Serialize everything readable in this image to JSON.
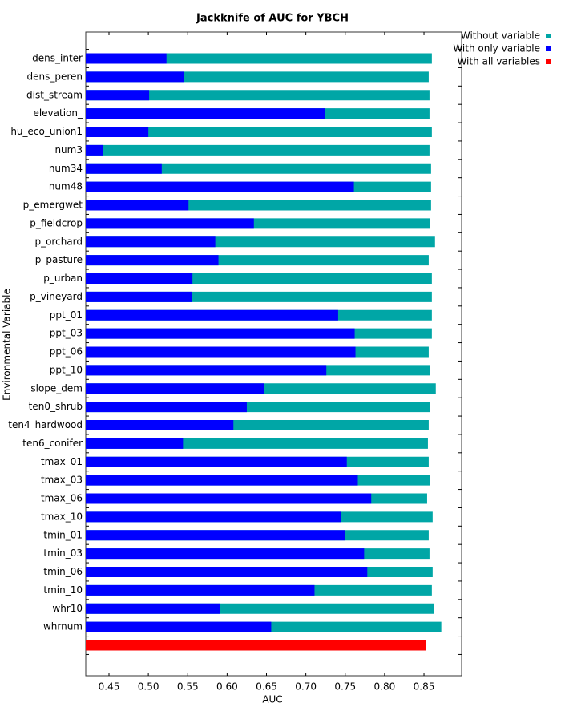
{
  "chart_data": {
    "type": "bar",
    "orientation": "horizontal",
    "title": "Jackknife of AUC for YBCH",
    "x_label": "AUC",
    "y_label": "Environmental Variable",
    "categories": [
      "dens_inter",
      "dens_peren",
      "dist_stream",
      "elevation_",
      "hu_eco_union1",
      "num3",
      "num34",
      "num48",
      "p_emergwet",
      "p_fieldcrop",
      "p_orchard",
      "p_pasture",
      "p_urban",
      "p_vineyard",
      "ppt_01",
      "ppt_03",
      "ppt_06",
      "ppt_10",
      "slope_dem",
      "ten0_shrub",
      "ten4_hardwood",
      "ten6_conifer",
      "tmax_01",
      "tmax_03",
      "tmax_06",
      "tmax_10",
      "tmin_01",
      "tmin_03",
      "tmin_06",
      "tmin_10",
      "whr10",
      "whrnum",
      null
    ],
    "series": [
      {
        "name": "Without variable",
        "color": "#00a6a6",
        "values": [
          0.86,
          0.856,
          0.857,
          0.857,
          0.86,
          0.857,
          0.859,
          0.859,
          0.859,
          0.858,
          0.864,
          0.856,
          0.86,
          0.86,
          0.86,
          0.86,
          0.856,
          0.858,
          0.865,
          0.858,
          0.856,
          0.855,
          0.856,
          0.858,
          0.854,
          0.861,
          0.856,
          0.857,
          0.861,
          0.86,
          0.863,
          0.872,
          null
        ]
      },
      {
        "name": "With only variable",
        "color": "#0000ff",
        "values": [
          0.523,
          0.545,
          0.501,
          0.724,
          0.5,
          0.442,
          0.517,
          0.761,
          0.551,
          0.634,
          0.585,
          0.589,
          0.556,
          0.555,
          0.741,
          0.762,
          0.763,
          0.726,
          0.647,
          0.625,
          0.608,
          0.544,
          0.752,
          0.766,
          0.783,
          0.745,
          0.75,
          0.774,
          0.778,
          0.711,
          0.591,
          0.656,
          null
        ]
      },
      {
        "name": "With all variables",
        "color": "#ff0000",
        "values": [
          null,
          null,
          null,
          null,
          null,
          null,
          null,
          null,
          null,
          null,
          null,
          null,
          null,
          null,
          null,
          null,
          null,
          null,
          null,
          null,
          null,
          null,
          null,
          null,
          null,
          null,
          null,
          null,
          null,
          null,
          null,
          null,
          0.852
        ]
      }
    ],
    "xlim": [
      0.4205,
      0.8978
    ],
    "xticks": [
      0.45,
      {
        "value": 0.5,
        "label": "0.50"
      },
      0.55,
      {
        "value": 0.6,
        "label": "0.60"
      },
      0.65,
      {
        "value": 0.7,
        "label": "0.70"
      },
      0.75,
      {
        "value": 0.8,
        "label": "0.80"
      },
      0.85
    ],
    "legend": "top-right"
  }
}
